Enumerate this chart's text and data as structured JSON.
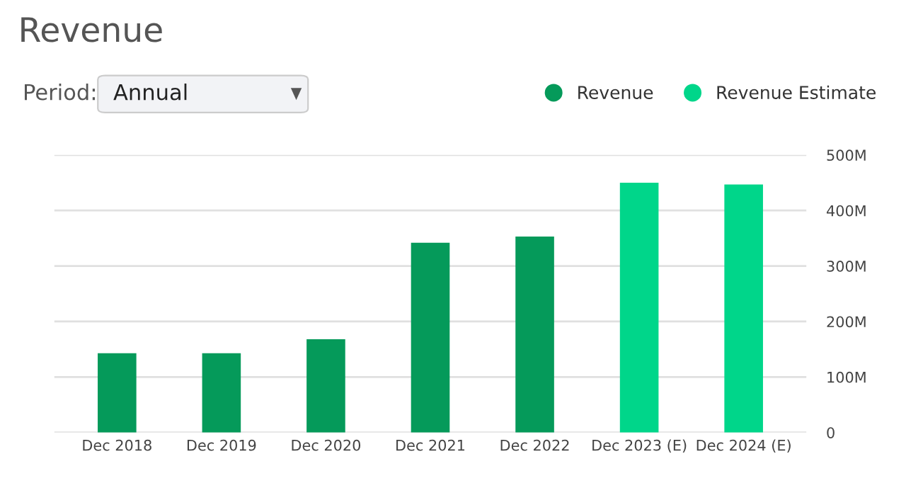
{
  "chart_data": {
    "type": "bar",
    "title": "Revenue",
    "annotations": [
      "Period:",
      "Annual"
    ],
    "categories": [
      "Dec 2018",
      "Dec 2019",
      "Dec 2020",
      "Dec 2021",
      "Dec 2022",
      "Dec 2023 (E)",
      "Dec 2024 (E)"
    ],
    "series": [
      {
        "name": "Revenue",
        "color": "#059a5a",
        "values": [
          143,
          143,
          168,
          342,
          353,
          null,
          null
        ]
      },
      {
        "name": "Revenue Estimate",
        "color": "#00d68a",
        "values": [
          null,
          null,
          null,
          null,
          null,
          450,
          447
        ]
      }
    ],
    "ylim": [
      0,
      500
    ],
    "yticks": [
      0,
      {
        "value": 100,
        "label": "100M"
      },
      {
        "value": 200,
        "label": "200M"
      },
      {
        "value": 300,
        "label": "300M"
      },
      {
        "value": 400,
        "label": "400M"
      },
      {
        "value": 500,
        "label": "500M"
      }
    ],
    "grid": "y",
    "legend": "top right"
  }
}
